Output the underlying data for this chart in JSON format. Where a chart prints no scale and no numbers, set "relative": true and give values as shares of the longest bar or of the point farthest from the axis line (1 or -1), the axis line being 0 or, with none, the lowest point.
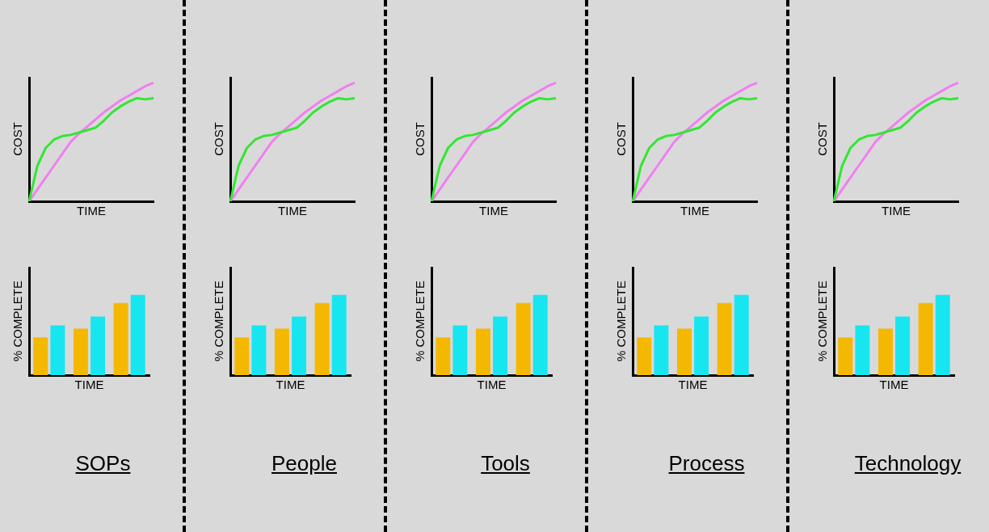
{
  "chart_data": [
    {
      "type": "line",
      "ylabel": "COST",
      "xlabel": "TIME",
      "relative": true,
      "tick_labels": false,
      "marker": "none",
      "categories": [
        null,
        null,
        null,
        null,
        null,
        null,
        null,
        null,
        null,
        null,
        null,
        null,
        null,
        null,
        null,
        null
      ],
      "series": [
        {
          "color": "#33e633",
          "values": [
            0,
            0.3,
            0.45,
            0.52,
            0.55,
            0.56,
            0.58,
            0.6,
            0.62,
            0.68,
            0.75,
            0.8,
            0.84,
            0.87,
            0.86,
            0.87
          ]
        },
        {
          "color": "#f080f0",
          "values": [
            0,
            0.1,
            0.2,
            0.3,
            0.4,
            0.5,
            0.57,
            0.63,
            0.69,
            0.75,
            0.8,
            0.85,
            0.89,
            0.93,
            0.97,
            1
          ]
        }
      ]
    },
    {
      "type": "bar",
      "ylabel": "% COMPLETE",
      "xlabel": "TIME",
      "relative": true,
      "tick_labels": false,
      "categories": [
        null,
        null,
        null
      ],
      "annotations": [
        "SOPs"
      ],
      "series": [
        {
          "color": "#f5b800",
          "values": [
            0.47,
            0.58,
            0.9
          ]
        },
        {
          "color": "#17e6f0",
          "values": [
            0.62,
            0.73,
            1
          ]
        }
      ]
    },
    {
      "type": "line",
      "ylabel": "COST",
      "xlabel": "TIME",
      "relative": true,
      "tick_labels": false,
      "marker": "none",
      "categories": [
        null,
        null,
        null,
        null,
        null,
        null,
        null,
        null,
        null,
        null,
        null,
        null,
        null,
        null,
        null,
        null
      ],
      "series": [
        {
          "color": "#33e633",
          "values": [
            0,
            0.3,
            0.45,
            0.52,
            0.55,
            0.56,
            0.58,
            0.6,
            0.62,
            0.68,
            0.75,
            0.8,
            0.84,
            0.87,
            0.86,
            0.87
          ]
        },
        {
          "color": "#f080f0",
          "values": [
            0,
            0.1,
            0.2,
            0.3,
            0.4,
            0.5,
            0.57,
            0.63,
            0.69,
            0.75,
            0.8,
            0.85,
            0.89,
            0.93,
            0.97,
            1
          ]
        }
      ]
    },
    {
      "type": "bar",
      "ylabel": "% COMPLETE",
      "xlabel": "TIME",
      "relative": true,
      "tick_labels": false,
      "categories": [
        null,
        null,
        null
      ],
      "annotations": [
        "People"
      ],
      "series": [
        {
          "color": "#f5b800",
          "values": [
            0.47,
            0.58,
            0.9
          ]
        },
        {
          "color": "#17e6f0",
          "values": [
            0.62,
            0.73,
            1
          ]
        }
      ]
    },
    {
      "type": "line",
      "ylabel": "COST",
      "xlabel": "TIME",
      "relative": true,
      "tick_labels": false,
      "marker": "none",
      "categories": [
        null,
        null,
        null,
        null,
        null,
        null,
        null,
        null,
        null,
        null,
        null,
        null,
        null,
        null,
        null,
        null
      ],
      "series": [
        {
          "color": "#33e633",
          "values": [
            0,
            0.3,
            0.45,
            0.52,
            0.55,
            0.56,
            0.58,
            0.6,
            0.62,
            0.68,
            0.75,
            0.8,
            0.84,
            0.87,
            0.86,
            0.87
          ]
        },
        {
          "color": "#f080f0",
          "values": [
            0,
            0.1,
            0.2,
            0.3,
            0.4,
            0.5,
            0.57,
            0.63,
            0.69,
            0.75,
            0.8,
            0.85,
            0.89,
            0.93,
            0.97,
            1
          ]
        }
      ]
    },
    {
      "type": "bar",
      "ylabel": "% COMPLETE",
      "xlabel": "TIME",
      "relative": true,
      "tick_labels": false,
      "categories": [
        null,
        null,
        null
      ],
      "annotations": [
        "Tools"
      ],
      "series": [
        {
          "color": "#f5b800",
          "values": [
            0.47,
            0.58,
            0.9
          ]
        },
        {
          "color": "#17e6f0",
          "values": [
            0.62,
            0.73,
            1
          ]
        }
      ]
    },
    {
      "type": "line",
      "ylabel": "COST",
      "xlabel": "TIME",
      "relative": true,
      "tick_labels": false,
      "marker": "none",
      "categories": [
        null,
        null,
        null,
        null,
        null,
        null,
        null,
        null,
        null,
        null,
        null,
        null,
        null,
        null,
        null,
        null
      ],
      "series": [
        {
          "color": "#33e633",
          "values": [
            0,
            0.3,
            0.45,
            0.52,
            0.55,
            0.56,
            0.58,
            0.6,
            0.62,
            0.68,
            0.75,
            0.8,
            0.84,
            0.87,
            0.86,
            0.87
          ]
        },
        {
          "color": "#f080f0",
          "values": [
            0,
            0.1,
            0.2,
            0.3,
            0.4,
            0.5,
            0.57,
            0.63,
            0.69,
            0.75,
            0.8,
            0.85,
            0.89,
            0.93,
            0.97,
            1
          ]
        }
      ]
    },
    {
      "type": "bar",
      "ylabel": "% COMPLETE",
      "xlabel": "TIME",
      "relative": true,
      "tick_labels": false,
      "categories": [
        null,
        null,
        null
      ],
      "annotations": [
        "Process"
      ],
      "series": [
        {
          "color": "#f5b800",
          "values": [
            0.47,
            0.58,
            0.9
          ]
        },
        {
          "color": "#17e6f0",
          "values": [
            0.62,
            0.73,
            1
          ]
        }
      ]
    },
    {
      "type": "line",
      "ylabel": "COST",
      "xlabel": "TIME",
      "relative": true,
      "tick_labels": false,
      "marker": "none",
      "categories": [
        null,
        null,
        null,
        null,
        null,
        null,
        null,
        null,
        null,
        null,
        null,
        null,
        null,
        null,
        null,
        null
      ],
      "series": [
        {
          "color": "#33e633",
          "values": [
            0,
            0.3,
            0.45,
            0.52,
            0.55,
            0.56,
            0.58,
            0.6,
            0.62,
            0.68,
            0.75,
            0.8,
            0.84,
            0.87,
            0.86,
            0.87
          ]
        },
        {
          "color": "#f080f0",
          "values": [
            0,
            0.1,
            0.2,
            0.3,
            0.4,
            0.5,
            0.57,
            0.63,
            0.69,
            0.75,
            0.8,
            0.85,
            0.89,
            0.93,
            0.97,
            1
          ]
        }
      ]
    },
    {
      "type": "bar",
      "ylabel": "% COMPLETE",
      "xlabel": "TIME",
      "relative": true,
      "tick_labels": false,
      "categories": [
        null,
        null,
        null
      ],
      "annotations": [
        "Technology"
      ],
      "series": [
        {
          "color": "#f5b800",
          "values": [
            0.47,
            0.58,
            0.9
          ]
        },
        {
          "color": "#17e6f0",
          "values": [
            0.62,
            0.73,
            1
          ]
        }
      ]
    }
  ]
}
